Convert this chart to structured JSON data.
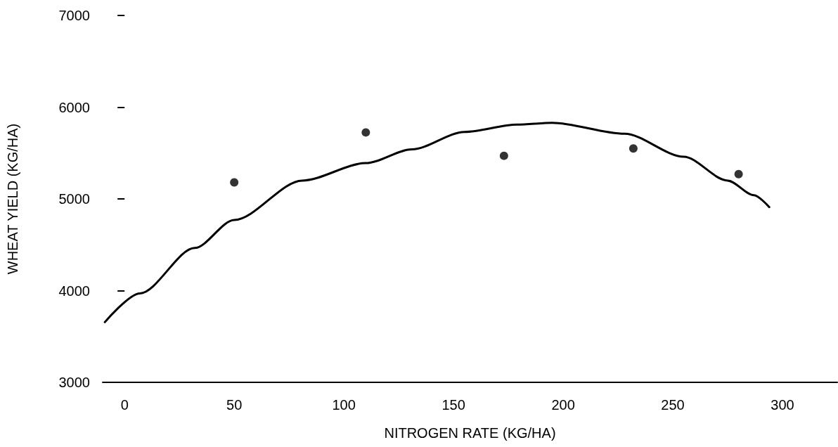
{
  "chart_data": {
    "type": "scatter",
    "xlabel": "NITROGEN RATE (KG/HA)",
    "ylabel": "WHEAT YIELD (KG/HA)",
    "xlim": [
      -10,
      325
    ],
    "xticks": [
      0,
      50,
      100,
      150,
      200,
      250,
      300
    ],
    "ylim": [
      3000,
      7000
    ],
    "yticks": [
      3000,
      4000,
      5000,
      6000,
      7000
    ],
    "grid": false,
    "marker": "circle",
    "series": [
      {
        "color": "#000000",
        "x": [
          50,
          110,
          173,
          232,
          280
        ],
        "values": [
          5180,
          5725,
          5470,
          5550,
          5270
        ]
      },
      {
        "type": "line",
        "color": "#000000",
        "marker": "none",
        "x": [
          -9,
          7,
          32,
          50,
          81,
          110,
          131,
          155,
          179,
          195,
          228,
          255,
          275,
          287,
          294
        ],
        "values": [
          3656,
          3970,
          4465,
          4770,
          5200,
          5390,
          5540,
          5730,
          5810,
          5830,
          5710,
          5460,
          5200,
          5040,
          4910
        ]
      }
    ]
  }
}
